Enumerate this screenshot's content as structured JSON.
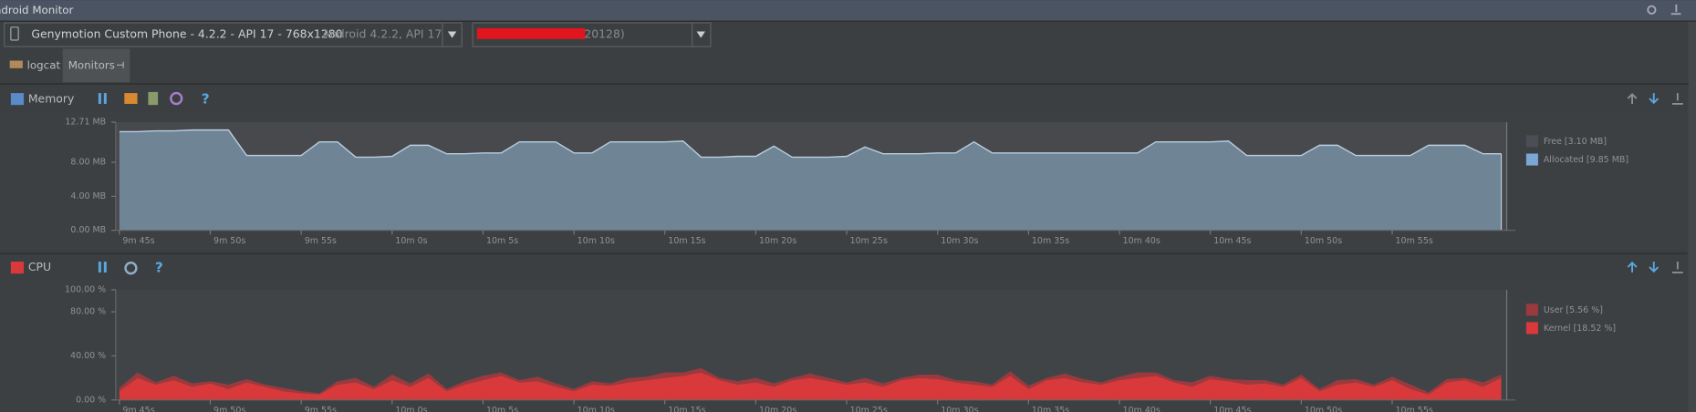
{
  "window": {
    "title": "Android Monitor"
  },
  "toolbar": {
    "device": "Genymotion Custom Phone - 4.2.2 - API 17 - 768x1280",
    "device_detail": "Android 4.2.2, API 17",
    "process": "(20128)"
  },
  "tabs": [
    "logcat",
    "Monitors"
  ],
  "memory": {
    "label": "Memory",
    "chart_data": {
      "type": "area",
      "x": [
        585,
        586,
        587,
        588,
        589,
        590,
        591,
        592,
        593,
        594,
        595,
        596,
        597,
        598,
        599,
        600,
        601,
        602,
        603,
        604,
        605,
        606,
        607,
        608,
        609,
        610,
        611,
        612,
        613,
        614,
        615,
        616,
        617,
        618,
        619,
        620,
        621,
        622,
        623,
        624,
        625,
        626,
        627,
        628,
        629,
        630,
        631,
        632,
        633,
        634,
        635,
        636,
        637,
        638,
        639,
        640,
        641,
        642,
        643,
        644,
        645,
        646,
        647,
        648,
        649,
        650,
        651,
        652,
        653,
        654,
        655,
        656,
        657,
        658,
        659,
        660,
        661
      ],
      "series": [
        {
          "color": "#b9cde0",
          "fill": "#6f8596",
          "values": [
            11.6,
            11.6,
            11.7,
            11.7,
            11.8,
            11.8,
            11.8,
            8.8,
            8.8,
            8.8,
            8.8,
            10.4,
            10.4,
            8.6,
            8.6,
            8.7,
            10.0,
            10.0,
            9.0,
            9.0,
            9.1,
            9.1,
            10.4,
            10.4,
            10.4,
            9.1,
            9.1,
            10.4,
            10.4,
            10.4,
            10.4,
            10.5,
            8.6,
            8.6,
            8.7,
            8.7,
            9.9,
            8.6,
            8.6,
            8.6,
            8.7,
            9.8,
            9.0,
            9.0,
            9.0,
            9.1,
            9.1,
            10.4,
            9.1,
            9.1,
            9.1,
            9.1,
            9.1,
            9.1,
            9.1,
            9.1,
            9.1,
            10.4,
            10.4,
            10.4,
            10.4,
            10.5,
            8.8,
            8.8,
            8.8,
            8.8,
            10.0,
            10.0,
            8.8,
            8.8,
            8.8,
            8.8,
            10.0,
            10.0,
            10.0,
            9.0,
            9.0
          ]
        }
      ],
      "legend": [
        {
          "name": "Free [3.10 MB]",
          "color": "#4b4f55"
        },
        {
          "name": "Allocated [9.85 MB]",
          "color": "#7ba7d7"
        }
      ],
      "xlim": [
        584.8,
        661.3
      ],
      "xticks": [
        {
          "value": 585,
          "label": "9m 45s"
        },
        {
          "value": 590,
          "label": "9m 50s"
        },
        {
          "value": 595,
          "label": "9m 55s"
        },
        {
          "value": 600,
          "label": "10m 0s"
        },
        {
          "value": 605,
          "label": "10m 5s"
        },
        {
          "value": 610,
          "label": "10m 10s"
        },
        {
          "value": 615,
          "label": "10m 15s"
        },
        {
          "value": 620,
          "label": "10m 20s"
        },
        {
          "value": 625,
          "label": "10m 25s"
        },
        {
          "value": 630,
          "label": "10m 30s"
        },
        {
          "value": 635,
          "label": "10m 35s"
        },
        {
          "value": 640,
          "label": "10m 40s"
        },
        {
          "value": 645,
          "label": "10m 45s"
        },
        {
          "value": 650,
          "label": "10m 50s"
        },
        {
          "value": 655,
          "label": "10m 55s"
        }
      ],
      "ylim": [
        0,
        12.71
      ],
      "yticks": [
        {
          "value": 0,
          "label": "0.00 MB"
        },
        {
          "value": 4,
          "label": "4.00 MB"
        },
        {
          "value": 8,
          "label": "8.00 MB"
        },
        {
          "value": 12.71,
          "label": "12.71 MB"
        }
      ]
    }
  },
  "cpu": {
    "label": "CPU",
    "chart_data": {
      "type": "stacked-area",
      "x": [
        585,
        586,
        587,
        588,
        589,
        590,
        591,
        592,
        593,
        594,
        595,
        596,
        597,
        598,
        599,
        600,
        601,
        602,
        603,
        604,
        605,
        606,
        607,
        608,
        609,
        610,
        611,
        612,
        613,
        614,
        615,
        616,
        617,
        618,
        619,
        620,
        621,
        622,
        623,
        624,
        625,
        626,
        627,
        628,
        629,
        630,
        631,
        632,
        633,
        634,
        635,
        636,
        637,
        638,
        639,
        640,
        641,
        642,
        643,
        644,
        645,
        646,
        647,
        648,
        649,
        650,
        651,
        652,
        653,
        654,
        655,
        656,
        657,
        658,
        659,
        660,
        661
      ],
      "series": [
        {
          "name": "Kernel [18.52 %]",
          "color": "#d9393b",
          "values": [
            8,
            20,
            14,
            18,
            12,
            15,
            10,
            16,
            12,
            8,
            6,
            5,
            14,
            16,
            10,
            18,
            12,
            20,
            8,
            14,
            18,
            22,
            16,
            17,
            12,
            8,
            14,
            13,
            16,
            18,
            20,
            22,
            25,
            18,
            14,
            16,
            12,
            18,
            20,
            17,
            14,
            16,
            12,
            18,
            20,
            19,
            16,
            14,
            12,
            22,
            10,
            18,
            20,
            16,
            14,
            18,
            20,
            22,
            16,
            12,
            19,
            17,
            14,
            15,
            12,
            20,
            8,
            14,
            16,
            12,
            18,
            10,
            5,
            16,
            18,
            12,
            20
          ]
        },
        {
          "name": "User [5.56 %]",
          "color": "#9a3a3e",
          "values": [
            3,
            5,
            2,
            4,
            3,
            2,
            4,
            3,
            2,
            3,
            2,
            1,
            3,
            4,
            2,
            5,
            3,
            4,
            2,
            3,
            4,
            3,
            2,
            4,
            3,
            2,
            3,
            2,
            4,
            3,
            5,
            3,
            4,
            2,
            3,
            4,
            3,
            2,
            4,
            3,
            2,
            4,
            3,
            2,
            3,
            4,
            2,
            3,
            2,
            4,
            3,
            2,
            4,
            3,
            2,
            3,
            5,
            3,
            2,
            4,
            3,
            2,
            4,
            3,
            2,
            3,
            2,
            4,
            3,
            2,
            3,
            4,
            2,
            3,
            2,
            4,
            3
          ]
        }
      ],
      "xlim": [
        584.8,
        661.3
      ],
      "xticks": [
        {
          "value": 585,
          "label": "9m 45s"
        },
        {
          "value": 590,
          "label": "9m 50s"
        },
        {
          "value": 595,
          "label": "9m 55s"
        },
        {
          "value": 600,
          "label": "10m 0s"
        },
        {
          "value": 605,
          "label": "10m 5s"
        },
        {
          "value": 610,
          "label": "10m 10s"
        },
        {
          "value": 615,
          "label": "10m 15s"
        },
        {
          "value": 620,
          "label": "10m 20s"
        },
        {
          "value": 625,
          "label": "10m 25s"
        },
        {
          "value": 630,
          "label": "10m 30s"
        },
        {
          "value": 635,
          "label": "10m 35s"
        },
        {
          "value": 640,
          "label": "10m 40s"
        },
        {
          "value": 645,
          "label": "10m 45s"
        },
        {
          "value": 650,
          "label": "10m 50s"
        },
        {
          "value": 655,
          "label": "10m 55s"
        }
      ],
      "ylim": [
        0,
        100
      ],
      "yticks": [
        {
          "value": 0,
          "label": "0.00 %"
        },
        {
          "value": 40,
          "label": "40.00 %"
        },
        {
          "value": 80,
          "label": "80.00 %"
        },
        {
          "value": 100,
          "label": "100.00 %"
        }
      ]
    }
  }
}
